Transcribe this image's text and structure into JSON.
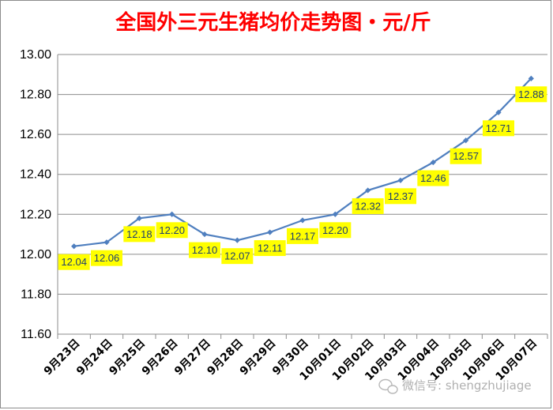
{
  "chart_data": {
    "type": "line",
    "title": "全国外三元生猪均价走势图・元/斤",
    "xlabel": "",
    "ylabel": "",
    "categories": [
      "9月23日",
      "9月24日",
      "9月25日",
      "9月26日",
      "9月27日",
      "9月28日",
      "9月29日",
      "9月30日",
      "10月01日",
      "10月02日",
      "10月03日",
      "10月04日",
      "10月05日",
      "10月06日",
      "10月07日"
    ],
    "series": [
      {
        "values": [
          12.04,
          12.06,
          12.18,
          12.2,
          12.1,
          12.07,
          12.11,
          12.17,
          12.2,
          12.32,
          12.37,
          12.46,
          12.57,
          12.71,
          12.88
        ]
      }
    ],
    "data_labels": [
      "12.04",
      "12.06",
      "12.18",
      "12.20",
      "12.10",
      "12.07",
      "12.11",
      "12.17",
      "12.20",
      "12.32",
      "12.37",
      "12.46",
      "12.57",
      "12.71",
      "12.88"
    ],
    "ylim": [
      11.6,
      13.0
    ],
    "yticks": [
      "11.60",
      "11.80",
      "12.00",
      "12.20",
      "12.40",
      "12.60",
      "12.80",
      "13.00"
    ],
    "ytick_values": [
      11.6,
      11.8,
      12.0,
      12.2,
      12.4,
      12.6,
      12.8,
      13.0
    ],
    "grid": "horizontal",
    "legend": "none",
    "colors": {
      "line": "#4f7fbf",
      "label_bg": "#ffff00",
      "title": "#ff0000",
      "grid": "#8c8c8c"
    }
  },
  "watermark": {
    "text": "微信号: shengzhujiage",
    "icon": "wechat-icon"
  }
}
